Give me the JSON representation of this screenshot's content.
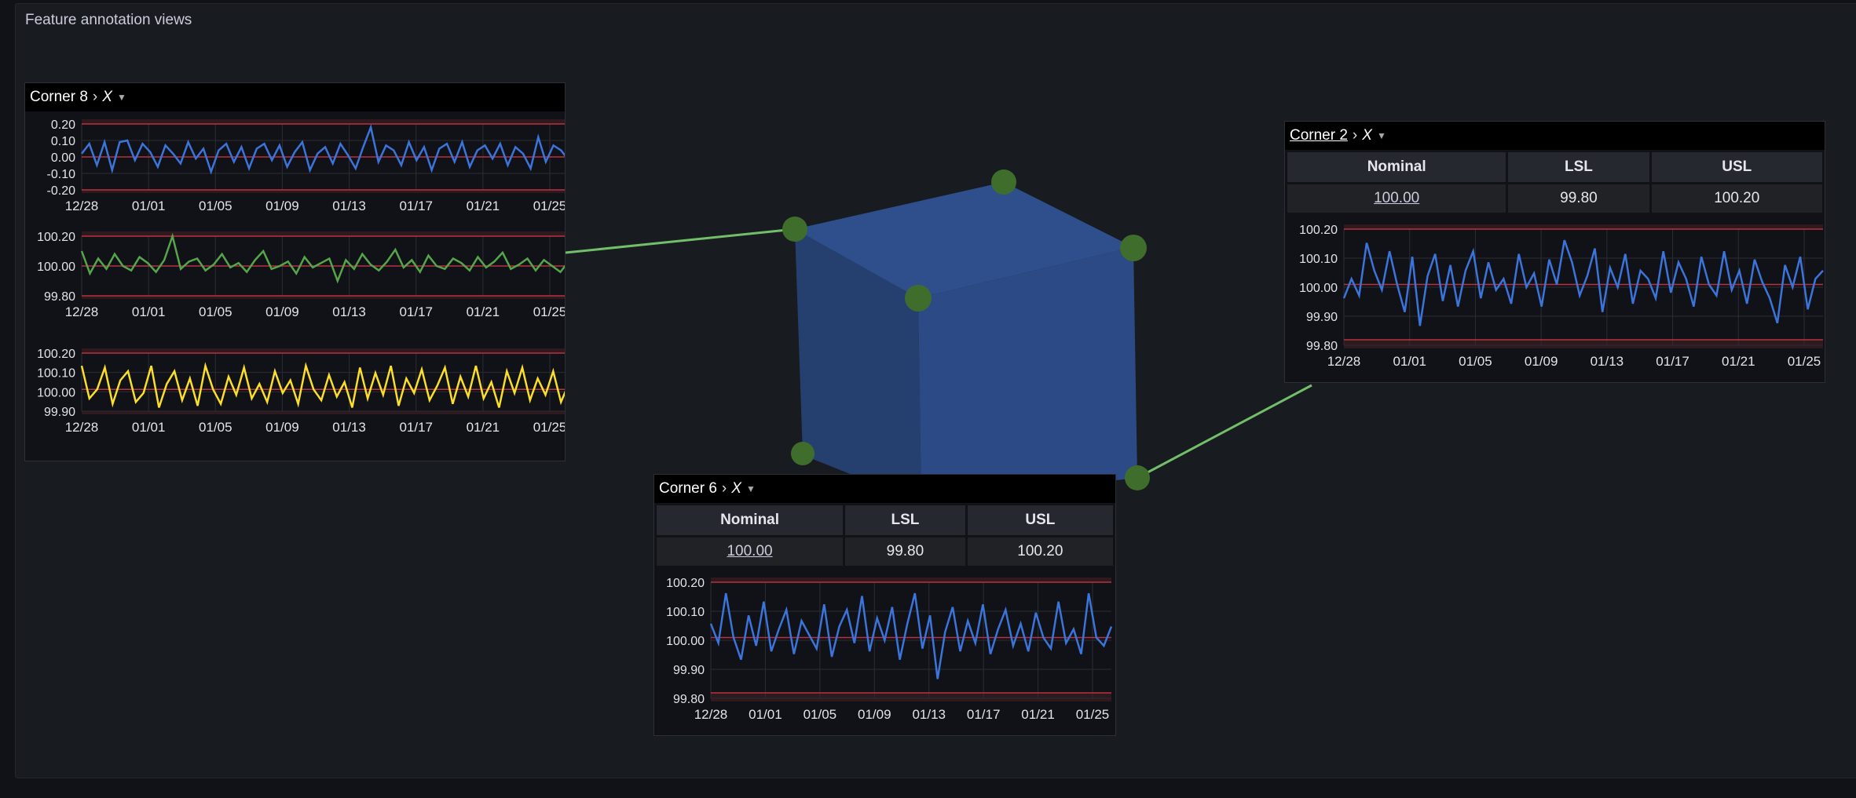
{
  "panel": {
    "title": "Feature annotation views"
  },
  "colors": {
    "blue": "#3b74db",
    "green": "#55a64a",
    "yellow": "#fade2a",
    "limit": "#b7333f",
    "connector": "#73bf69",
    "cube_front": "#2b4a86",
    "cube_left": "#25406f",
    "cube_top": "#2e4f8c",
    "node": "#3f6e2c"
  },
  "cards": {
    "corner8": {
      "title": "Corner 8",
      "axis": "X"
    },
    "corner2": {
      "title": "Corner 2",
      "axis": "X",
      "table": {
        "headers": [
          "Nominal",
          "LSL",
          "USL"
        ],
        "nominal": "100.00",
        "lsl": "99.80",
        "usl": "100.20"
      }
    },
    "corner6": {
      "title": "Corner 6",
      "axis": "X",
      "table": {
        "headers": [
          "Nominal",
          "LSL",
          "USL"
        ],
        "nominal": "100.00",
        "lsl": "99.80",
        "usl": "100.20"
      }
    }
  },
  "chart_data": [
    {
      "id": "c8_a",
      "type": "line",
      "color": "blue",
      "x_ticks": [
        "12/28",
        "01/01",
        "01/05",
        "01/09",
        "01/13",
        "01/17",
        "01/21",
        "01/25"
      ],
      "y_ticks": [
        "0.20",
        "0.10",
        "0.00",
        "-0.10",
        "-0.20"
      ],
      "ylim": [
        -0.2,
        0.2
      ],
      "limits": [
        -0.2,
        0.2
      ],
      "nominal": 0.0,
      "values": [
        0.02,
        0.08,
        -0.05,
        0.09,
        -0.08,
        0.09,
        0.1,
        -0.02,
        0.08,
        0.03,
        -0.06,
        0.07,
        0.02,
        -0.04,
        0.09,
        -0.01,
        0.05,
        -0.09,
        0.04,
        0.08,
        -0.03,
        0.06,
        -0.07,
        0.05,
        0.08,
        -0.02,
        0.07,
        -0.06,
        0.03,
        0.09,
        -0.08,
        0.02,
        0.06,
        -0.04,
        0.08,
        0.01,
        -0.07,
        0.06,
        0.18,
        -0.03,
        0.07,
        0.04,
        -0.05,
        0.09,
        -0.02,
        0.06,
        -0.08,
        0.05,
        0.08,
        -0.03,
        0.09,
        -0.06,
        0.04,
        0.07,
        -0.01,
        0.08,
        -0.05,
        0.06,
        0.02,
        -0.07,
        0.12,
        -0.03,
        0.07,
        0.04,
        -0.02
      ]
    },
    {
      "id": "c8_b",
      "type": "line",
      "color": "green",
      "x_ticks": [
        "12/28",
        "01/01",
        "01/05",
        "01/09",
        "01/13",
        "01/17",
        "01/21",
        "01/25"
      ],
      "y_ticks": [
        "100.20",
        "100.00",
        "99.80"
      ],
      "ylim": [
        99.8,
        100.2
      ],
      "limits": [
        99.8,
        100.2
      ],
      "nominal": 100.0,
      "values": [
        100.1,
        99.95,
        100.05,
        99.98,
        100.08,
        100.0,
        99.97,
        100.06,
        100.02,
        99.96,
        100.04,
        100.22,
        99.98,
        100.03,
        100.05,
        99.97,
        100.01,
        100.08,
        99.99,
        100.02,
        99.96,
        100.04,
        100.1,
        99.98,
        100.0,
        100.03,
        99.95,
        100.06,
        99.99,
        100.02,
        100.05,
        99.9,
        100.04,
        99.98,
        100.08,
        100.01,
        99.97,
        100.03,
        100.11,
        99.99,
        100.04,
        99.96,
        100.07,
        100.0,
        99.98,
        100.05,
        100.02,
        99.97,
        100.06,
        99.99,
        100.03,
        100.09,
        99.98,
        100.01,
        100.05,
        99.97,
        100.04,
        100.0,
        99.96,
        100.03
      ]
    },
    {
      "id": "c8_c",
      "type": "line",
      "color": "yellow",
      "x_ticks": [
        "12/28",
        "01/01",
        "01/05",
        "01/09",
        "01/13",
        "01/17",
        "01/21",
        "01/25"
      ],
      "y_ticks": [
        "100.20",
        "100.10",
        "100.00",
        "99.90"
      ],
      "ylim": [
        99.88,
        100.2
      ],
      "limits": [
        99.8,
        100.2
      ],
      "nominal": 100.0,
      "values": [
        100.13,
        99.95,
        100.0,
        100.12,
        99.92,
        100.05,
        100.1,
        99.93,
        99.98,
        100.13,
        99.9,
        100.03,
        100.1,
        99.94,
        100.06,
        99.91,
        100.13,
        100.0,
        99.92,
        100.07,
        99.97,
        100.12,
        99.95,
        100.03,
        99.93,
        100.1,
        99.98,
        100.05,
        99.92,
        100.13,
        100.0,
        99.94,
        100.08,
        99.96,
        100.04,
        99.9,
        100.12,
        99.95,
        100.09,
        99.97,
        100.13,
        99.91,
        100.06,
        99.98,
        100.11,
        99.94,
        100.02,
        100.12,
        99.92,
        100.07,
        99.96,
        100.13,
        99.95,
        100.04,
        99.9,
        100.1,
        99.98,
        100.12,
        99.94,
        100.06,
        99.97,
        100.1,
        99.93,
        100.03
      ]
    },
    {
      "id": "c2",
      "type": "line",
      "color": "blue",
      "x_ticks": [
        "12/28",
        "01/01",
        "01/05",
        "01/09",
        "01/13",
        "01/17",
        "01/21",
        "01/25"
      ],
      "y_ticks": [
        "100.20",
        "100.10",
        "100.00",
        "99.90",
        "99.80"
      ],
      "ylim": [
        99.78,
        100.2
      ],
      "limits": [
        99.8,
        100.2
      ],
      "nominal": 100.0,
      "values": [
        99.95,
        100.02,
        99.96,
        100.15,
        100.05,
        99.98,
        100.12,
        100.0,
        99.9,
        100.1,
        99.85,
        100.03,
        100.11,
        99.94,
        100.07,
        99.92,
        100.05,
        100.12,
        99.95,
        100.08,
        99.98,
        100.02,
        99.93,
        100.11,
        99.99,
        100.04,
        99.92,
        100.09,
        100.0,
        100.16,
        100.08,
        99.96,
        100.03,
        100.13,
        99.9,
        100.06,
        99.99,
        100.11,
        99.93,
        100.05,
        100.02,
        99.95,
        100.12,
        99.97,
        100.08,
        100.02,
        99.92,
        100.1,
        100.0,
        99.96,
        100.12,
        99.98,
        100.05,
        99.93,
        100.09,
        100.01,
        99.95,
        99.86,
        100.07,
        99.99,
        100.1,
        99.91,
        100.02,
        100.05
      ]
    },
    {
      "id": "c6",
      "type": "line",
      "color": "blue",
      "x_ticks": [
        "12/28",
        "01/01",
        "01/05",
        "01/09",
        "01/13",
        "01/17",
        "01/21",
        "01/25"
      ],
      "y_ticks": [
        "100.20",
        "100.10",
        "100.00",
        "99.90",
        "99.80"
      ],
      "ylim": [
        99.78,
        100.2
      ],
      "limits": [
        99.8,
        100.2
      ],
      "nominal": 100.0,
      "values": [
        100.05,
        99.98,
        100.16,
        100.0,
        99.92,
        100.08,
        99.97,
        100.13,
        99.95,
        100.03,
        100.1,
        99.94,
        100.06,
        100.01,
        99.96,
        100.12,
        99.93,
        100.04,
        100.1,
        99.98,
        100.15,
        99.95,
        100.07,
        99.99,
        100.11,
        99.92,
        100.05,
        100.16,
        99.96,
        100.08,
        99.85,
        100.02,
        100.11,
        99.95,
        100.06,
        99.98,
        100.12,
        99.94,
        100.03,
        100.1,
        99.97,
        100.05,
        99.95,
        100.09,
        100.0,
        99.96,
        100.13,
        99.98,
        100.03,
        99.94,
        100.16,
        100.0,
        99.97,
        100.04
      ]
    }
  ]
}
